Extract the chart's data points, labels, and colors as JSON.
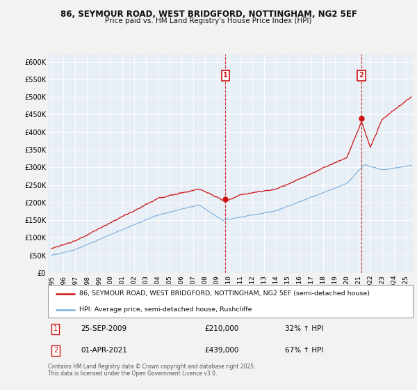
{
  "title_line1": "86, SEYMOUR ROAD, WEST BRIDGFORD, NOTTINGHAM, NG2 5EF",
  "title_line2": "Price paid vs. HM Land Registry's House Price Index (HPI)",
  "ylim": [
    0,
    620000
  ],
  "xlim_start": 1994.7,
  "xlim_end": 2025.6,
  "yticks": [
    0,
    50000,
    100000,
    150000,
    200000,
    250000,
    300000,
    350000,
    400000,
    450000,
    500000,
    550000,
    600000
  ],
  "ytick_labels": [
    "£0",
    "£50K",
    "£100K",
    "£150K",
    "£200K",
    "£250K",
    "£300K",
    "£350K",
    "£400K",
    "£450K",
    "£500K",
    "£550K",
    "£600K"
  ],
  "hpi_color": "#7aaddc",
  "price_color": "#cc1111",
  "background_plot": "#e8eef5",
  "background_fig": "#f2f2f2",
  "grid_color": "#ffffff",
  "sale1_x": 2009.73,
  "sale1_y": 210000,
  "sale1_label": "1",
  "sale2_x": 2021.25,
  "sale2_y": 439000,
  "sale2_label": "2",
  "annotation1_date": "25-SEP-2009",
  "annotation1_price": "£210,000",
  "annotation1_hpi": "32% ↑ HPI",
  "annotation2_date": "01-APR-2021",
  "annotation2_price": "£439,000",
  "annotation2_hpi": "67% ↑ HPI",
  "legend_line1": "86, SEYMOUR ROAD, WEST BRIDGFORD, NOTTINGHAM, NG2 5EF (semi-detached house)",
  "legend_line2": "HPI: Average price, semi-detached house, Rushcliffe",
  "footer": "Contains HM Land Registry data © Crown copyright and database right 2025.\nThis data is licensed under the Open Government Licence v3.0."
}
